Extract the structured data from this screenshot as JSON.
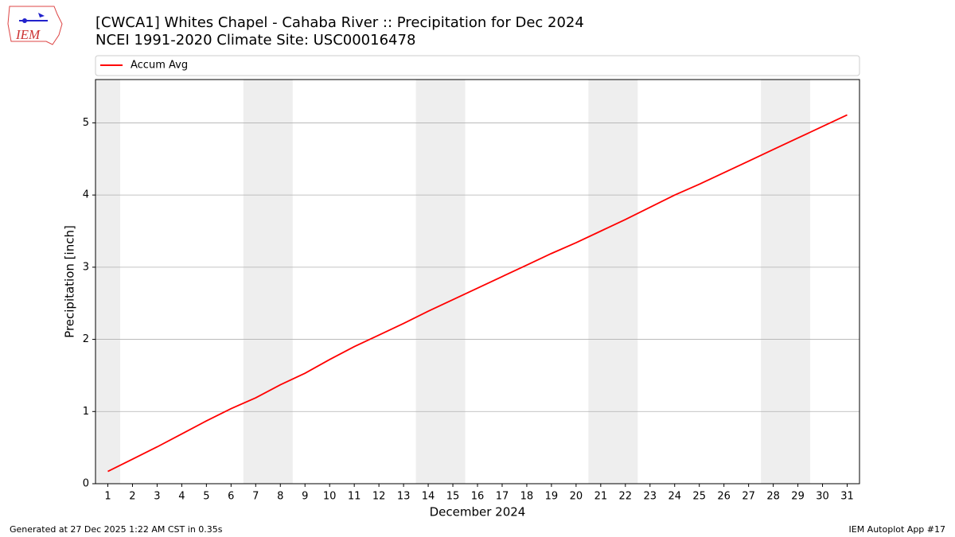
{
  "chart_data": {
    "type": "line",
    "title": "[CWCA1] Whites Chapel - Cahaba River :: Precipitation for Dec 2024",
    "subtitle": "NCEI 1991-2020 Climate Site: USC00016478",
    "x_label": "December 2024",
    "y_label": "Precipitation [inch]",
    "x": [
      1,
      2,
      3,
      4,
      5,
      6,
      7,
      8,
      9,
      10,
      11,
      12,
      13,
      14,
      15,
      16,
      17,
      18,
      19,
      20,
      21,
      22,
      23,
      24,
      25,
      26,
      27,
      28,
      29,
      30,
      31
    ],
    "series": [
      {
        "name": "Accum Avg",
        "color": "#ff0000",
        "values": [
          0.17,
          0.34,
          0.51,
          0.69,
          0.87,
          1.04,
          1.19,
          1.37,
          1.53,
          1.72,
          1.9,
          2.06,
          2.22,
          2.39,
          2.55,
          2.71,
          2.87,
          3.03,
          3.19,
          3.34,
          3.5,
          3.66,
          3.83,
          4.0,
          4.15,
          4.31,
          4.47,
          4.63,
          4.79,
          4.95,
          5.11
        ]
      }
    ],
    "shaded_spans": [
      [
        0.5,
        1.5
      ],
      [
        6.5,
        8.5
      ],
      [
        13.5,
        15.5
      ],
      [
        20.5,
        22.5
      ],
      [
        27.5,
        29.5
      ]
    ],
    "shade_color": "#eeeeee",
    "xlim": [
      0.5,
      31.5
    ],
    "ylim": [
      0,
      5.6
    ],
    "xticks": [
      1,
      2,
      3,
      4,
      5,
      6,
      7,
      8,
      9,
      10,
      11,
      12,
      13,
      14,
      15,
      16,
      17,
      18,
      19,
      20,
      21,
      22,
      23,
      24,
      25,
      26,
      27,
      28,
      29,
      30,
      31
    ],
    "yticks": [
      0,
      1,
      2,
      3,
      4,
      5
    ],
    "grid": "y",
    "legend": "top"
  },
  "footer": {
    "left": "Generated at 27 Dec 2025 1:22 AM CST in 0.35s",
    "right": "IEM Autoplot App #17"
  },
  "logo": {
    "text": "IEM"
  }
}
